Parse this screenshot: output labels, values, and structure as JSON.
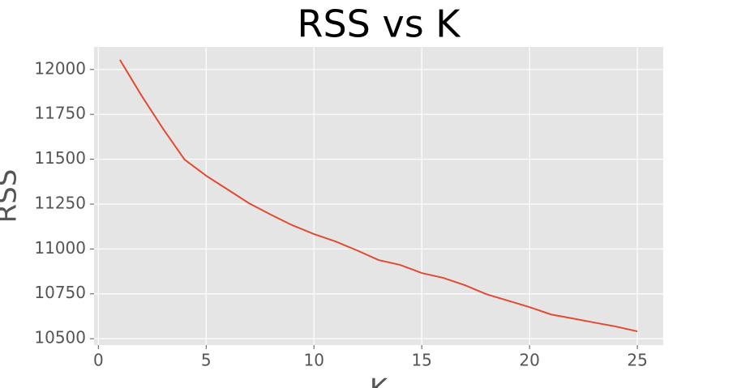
{
  "chart_data": {
    "type": "line",
    "title": "RSS vs K",
    "x_label": "K",
    "y_label": "RSS",
    "x": [
      1,
      2,
      3,
      4,
      5,
      6,
      7,
      8,
      9,
      10,
      11,
      12,
      13,
      14,
      15,
      16,
      17,
      18,
      19,
      20,
      21,
      22,
      23,
      24,
      25
    ],
    "series": [
      {
        "name": "RSS",
        "color": "#e24a33",
        "values": [
          12054,
          11855,
          11670,
          11498,
          11408,
          11331,
          11254,
          11191,
          11132,
          11083,
          11042,
          10992,
          10938,
          10911,
          10866,
          10839,
          10798,
          10748,
          10712,
          10676,
          10635,
          10613,
          10590,
          10568,
          10541
        ]
      }
    ],
    "xlim": [
      -0.2,
      26.2
    ],
    "xticks": [
      0,
      5,
      10,
      15,
      20,
      25
    ],
    "ylim": [
      10464.5,
      12125.5
    ],
    "yticks": [
      10500,
      10750,
      11000,
      11250,
      11500,
      11750,
      12000
    ],
    "grid": true
  }
}
